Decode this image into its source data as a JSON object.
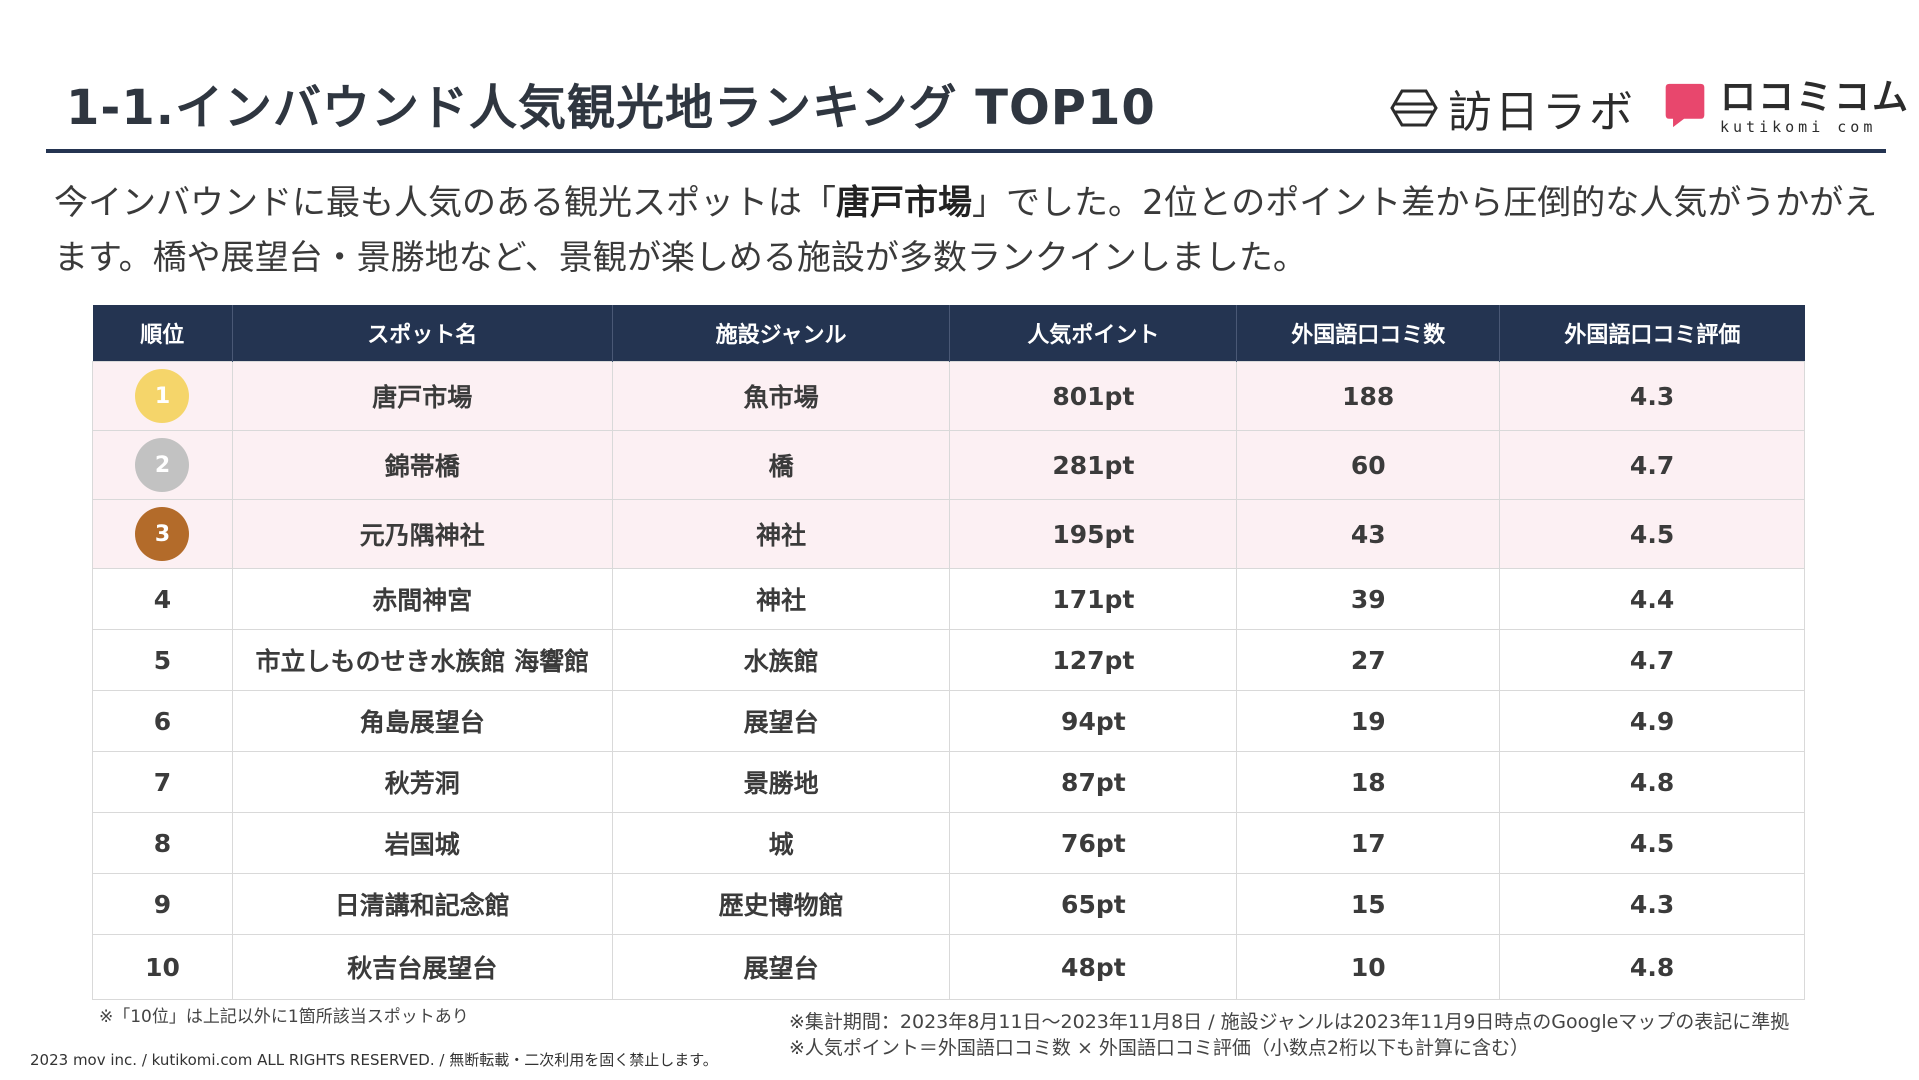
{
  "title": "1-1.インバウンド人気観光地ランキング TOP10",
  "logos": {
    "hojin_text": "訪日ラボ",
    "kuti_ja": "ロコミコム",
    "kuti_en": "kutikomi com",
    "kuti_color": "#e8476d"
  },
  "lead": {
    "before": "今インバウンドに最も人気のある観光スポットは「",
    "highlight": "唐戸市場",
    "after": "」でした。2位とのポイント差から圧倒的な人気がうかがえます。橋や展望台・景勝地など、景観が楽しめる施設が多数ランクインしました。"
  },
  "table": {
    "headers": [
      "順位",
      "スポット名",
      "施設ジャンル",
      "人気ポイント",
      "外国語口コミ数",
      "外国語口コミ評価"
    ],
    "rows": [
      {
        "rank": "1",
        "spot": "唐戸市場",
        "genre": "魚市場",
        "points": "801pt",
        "reviews": "188",
        "rating": "4.3"
      },
      {
        "rank": "2",
        "spot": "錦帯橋",
        "genre": "橋",
        "points": "281pt",
        "reviews": "60",
        "rating": "4.7"
      },
      {
        "rank": "3",
        "spot": "元乃隅神社",
        "genre": "神社",
        "points": "195pt",
        "reviews": "43",
        "rating": "4.5"
      },
      {
        "rank": "4",
        "spot": "赤間神宮",
        "genre": "神社",
        "points": "171pt",
        "reviews": "39",
        "rating": "4.4"
      },
      {
        "rank": "5",
        "spot": "市立しものせき水族館 海響館",
        "genre": "水族館",
        "points": "127pt",
        "reviews": "27",
        "rating": "4.7"
      },
      {
        "rank": "6",
        "spot": "角島展望台",
        "genre": "展望台",
        "points": "94pt",
        "reviews": "19",
        "rating": "4.9"
      },
      {
        "rank": "7",
        "spot": "秋芳洞",
        "genre": "景勝地",
        "points": "87pt",
        "reviews": "18",
        "rating": "4.8"
      },
      {
        "rank": "8",
        "spot": "岩国城",
        "genre": "城",
        "points": "76pt",
        "reviews": "17",
        "rating": "4.5"
      },
      {
        "rank": "9",
        "spot": "日清講和記念館",
        "genre": "歴史博物館",
        "points": "65pt",
        "reviews": "15",
        "rating": "4.3"
      },
      {
        "rank": "10",
        "spot": "秋吉台展望台",
        "genre": "展望台",
        "points": "48pt",
        "reviews": "10",
        "rating": "4.8"
      }
    ]
  },
  "notes": {
    "left": "※「10位」は上記以外に1箇所該当スポットあり",
    "period": "※集計期間：2023年8月11日～2023年11月8日 / 施設ジャンルは2023年11月9日時点のGoogleマップの表記に準拠",
    "formula": "※人気ポイント＝外国語口コミ数 × 外国語口コミ評価（小数点2桁以下も計算に含む）"
  },
  "copyright": "2023 mov inc. / kutikomi.com ALL RIGHTS RESERVED. / 無断転載・二次利用を固く禁止します。"
}
